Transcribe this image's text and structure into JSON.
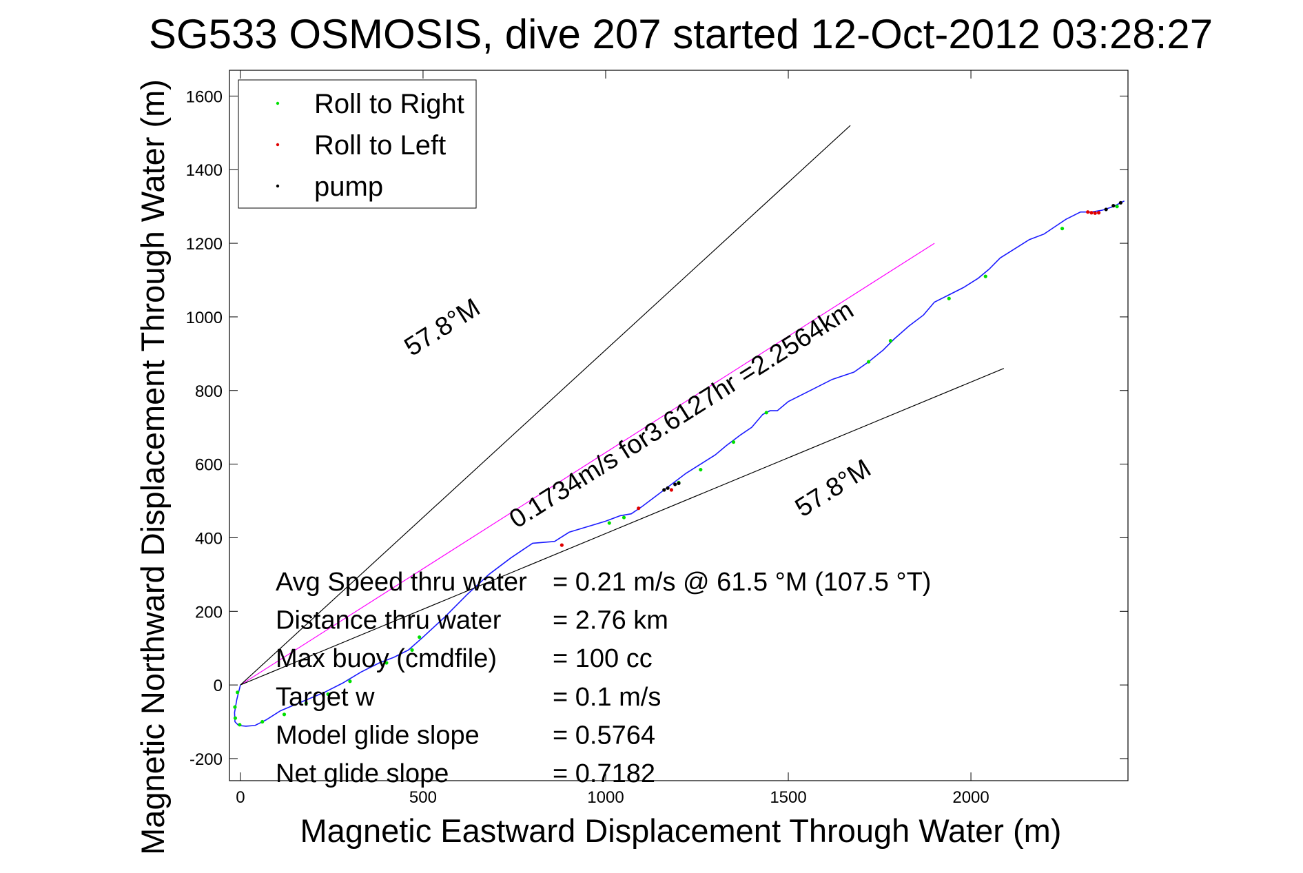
{
  "chart_data": {
    "type": "line",
    "title": "SG533 OSMOSIS, dive 207 started 12-Oct-2012 03:28:27",
    "xlabel": "Magnetic Eastward Displacement Through Water (m)",
    "ylabel": "Magnetic Northward Displacement Through Water (m)",
    "xlim": [
      -30,
      2430
    ],
    "ylim": [
      -260,
      1670
    ],
    "xticks": [
      0,
      500,
      1000,
      1500,
      2000
    ],
    "yticks": [
      -200,
      0,
      200,
      400,
      600,
      800,
      1000,
      1200,
      1400,
      1600
    ],
    "grid": false,
    "legend_placement": "top-left",
    "legend": [
      {
        "label": "Roll to Right",
        "color": "#00e000"
      },
      {
        "label": "Roll to Left",
        "color": "#e00000"
      },
      {
        "label": "pump",
        "color": "#000000"
      }
    ],
    "series": [
      {
        "name": "",
        "color": "#1a1aff",
        "x": [
          0,
          -10,
          -16,
          -15,
          -5,
          15,
          40,
          70,
          110,
          170,
          230,
          280,
          330,
          380,
          420,
          460,
          500,
          560,
          620,
          680,
          740,
          800,
          860,
          900,
          950,
          1000,
          1040,
          1070,
          1100,
          1140,
          1180,
          1220,
          1260,
          1300,
          1330,
          1350,
          1370,
          1400,
          1430,
          1450,
          1470,
          1500,
          1560,
          1620,
          1680,
          1720,
          1760,
          1790,
          1830,
          1870,
          1900,
          1940,
          1980,
          2020,
          2050,
          2080,
          2120,
          2160,
          2200,
          2230,
          2260,
          2300,
          2330,
          2360,
          2390,
          2420
        ],
        "y": [
          0,
          -40,
          -75,
          -100,
          -110,
          -112,
          -110,
          -95,
          -70,
          -45,
          -20,
          5,
          35,
          60,
          75,
          95,
          130,
          185,
          245,
          300,
          345,
          385,
          390,
          415,
          430,
          445,
          460,
          465,
          485,
          515,
          545,
          575,
          600,
          625,
          650,
          665,
          680,
          700,
          735,
          745,
          745,
          770,
          800,
          830,
          850,
          878,
          910,
          940,
          975,
          1005,
          1040,
          1060,
          1080,
          1105,
          1130,
          1160,
          1185,
          1210,
          1225,
          1245,
          1265,
          1285,
          1285,
          1290,
          1300,
          1315
        ]
      },
      {
        "name": "",
        "color": "#ff00ff",
        "x": [
          0,
          1900
        ],
        "y": [
          0,
          1200
        ]
      },
      {
        "name": "",
        "color": "#000000",
        "x": [
          0,
          1670
        ],
        "y": [
          0,
          1520
        ]
      },
      {
        "name": "",
        "color": "#000000",
        "x": [
          0,
          2090
        ],
        "y": [
          0,
          860
        ]
      }
    ],
    "markers": {
      "roll_right": {
        "color": "#00e000",
        "x": [
          -8,
          -15,
          -14,
          -2,
          60,
          120,
          180,
          240,
          300,
          400,
          470,
          490,
          1010,
          1050,
          1200,
          1260,
          1350,
          1440,
          1720,
          1780,
          1940,
          2040,
          2250,
          2400
        ],
        "y": [
          -20,
          -60,
          -90,
          -108,
          -100,
          -80,
          -50,
          -25,
          10,
          60,
          95,
          130,
          440,
          455,
          550,
          585,
          660,
          740,
          878,
          935,
          1050,
          1110,
          1240,
          1300
        ]
      },
      "roll_left": {
        "color": "#e00000",
        "x": [
          880,
          1090,
          1180,
          2320,
          2330,
          2340,
          2350
        ],
        "y": [
          380,
          480,
          530,
          1285,
          1283,
          1282,
          1283
        ]
      },
      "pump": {
        "color": "#000000",
        "x": [
          1160,
          1170,
          1190,
          1200,
          2370,
          2390,
          2410
        ],
        "y": [
          530,
          535,
          545,
          548,
          1292,
          1302,
          1310
        ]
      }
    },
    "annotations": [
      {
        "text": "0.1734m/s for3.6127hr =2.2564km",
        "x": 1220,
        "y": 715,
        "angle_deg": -32.3,
        "type": "line-label"
      },
      {
        "text": "57.8°M",
        "x": 1635,
        "y": 515,
        "angle_deg": -32.3,
        "type": "line-label"
      },
      {
        "text": "57.8°M",
        "x": 565,
        "y": 952,
        "angle_deg": -32.3,
        "type": "line-label"
      }
    ],
    "stats": [
      {
        "label": "Avg Speed thru water",
        "value": "=  0.21 m/s @  61.5 °M (107.5 °T)"
      },
      {
        "label": "Distance thru water",
        "value": "=  2.76 km"
      },
      {
        "label": "Max buoy (cmdfile)",
        "value": "= 100 cc"
      },
      {
        "label": "Target w",
        "value": "= 0.1 m/s"
      },
      {
        "label": "Model glide slope",
        "value": "= 0.5764"
      },
      {
        "label": "Net glide slope",
        "value": "= 0.7182"
      }
    ]
  }
}
